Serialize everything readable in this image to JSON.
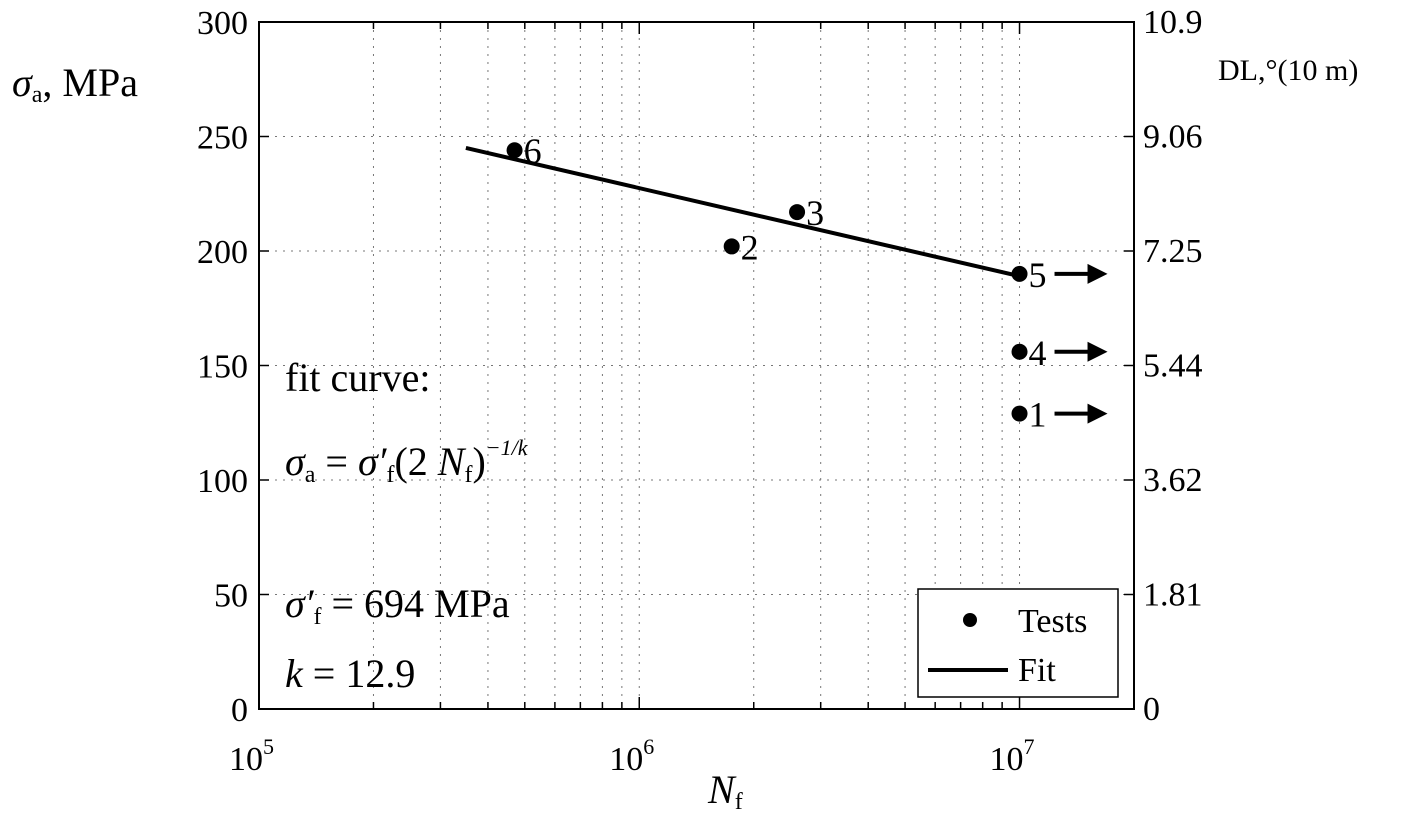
{
  "chart_data": {
    "type": "scatter",
    "x_scale": "log",
    "xlim": [
      100000,
      20000000
    ],
    "ylim": [
      0,
      300
    ],
    "grid": true,
    "x_ticks": [
      {
        "value": 100000,
        "base": "10",
        "exp": "5"
      },
      {
        "value": 1000000,
        "base": "10",
        "exp": "6"
      },
      {
        "value": 10000000,
        "base": "10",
        "exp": "7"
      }
    ],
    "y_ticks": [
      {
        "value": 0,
        "label": "0"
      },
      {
        "value": 50,
        "label": "50"
      },
      {
        "value": 100,
        "label": "100"
      },
      {
        "value": 150,
        "label": "150"
      },
      {
        "value": 200,
        "label": "200"
      },
      {
        "value": 250,
        "label": "250"
      },
      {
        "value": 300,
        "label": "300"
      }
    ],
    "y2_ticks": [
      {
        "value": 0,
        "label": "0"
      },
      {
        "value": 50,
        "label": "1.81"
      },
      {
        "value": 100,
        "label": "3.62"
      },
      {
        "value": 150,
        "label": "5.44"
      },
      {
        "value": 200,
        "label": "7.25"
      },
      {
        "value": 250,
        "label": "9.06"
      },
      {
        "value": 300,
        "label": "10.9"
      }
    ],
    "ylabel": {
      "sym": "σ",
      "sub": "a",
      "rest": ", MPa"
    },
    "xlabel": {
      "sym": "N",
      "sub": "f"
    },
    "y2label": "DL,°(10 m)",
    "series": [
      {
        "name": "Tests",
        "kind": "points",
        "points": [
          {
            "label": "1",
            "x": 10000000,
            "y": 129,
            "runout": true
          },
          {
            "label": "2",
            "x": 1750000,
            "y": 202,
            "runout": false
          },
          {
            "label": "3",
            "x": 2600000,
            "y": 217,
            "runout": false
          },
          {
            "label": "4",
            "x": 10000000,
            "y": 156,
            "runout": true
          },
          {
            "label": "5",
            "x": 10000000,
            "y": 190,
            "runout": true
          },
          {
            "label": "6",
            "x": 470000,
            "y": 244,
            "runout": false
          }
        ]
      },
      {
        "name": "Fit",
        "kind": "line",
        "points": [
          {
            "x": 350000,
            "y": 245
          },
          {
            "x": 10000000,
            "y": 189
          }
        ]
      }
    ],
    "annotations": {
      "fit_title": "fit curve:",
      "equation": {
        "lhs": "σ",
        "lhs_sub": "a",
        "eq": " = ",
        "coef": "σ′",
        "coef_sub": "f",
        "open": "(2 ",
        "n": "N",
        "n_sub": "f",
        "close": ")",
        "exp": "−1/k"
      },
      "sigma_f": {
        "sym": "σ′",
        "sub": "f",
        "rest": " = 694 MPa"
      },
      "k": {
        "sym": "k",
        "rest": " = 12.9"
      }
    },
    "legend": {
      "position": "bottom-right",
      "entries": [
        "Tests",
        "Fit"
      ]
    }
  }
}
